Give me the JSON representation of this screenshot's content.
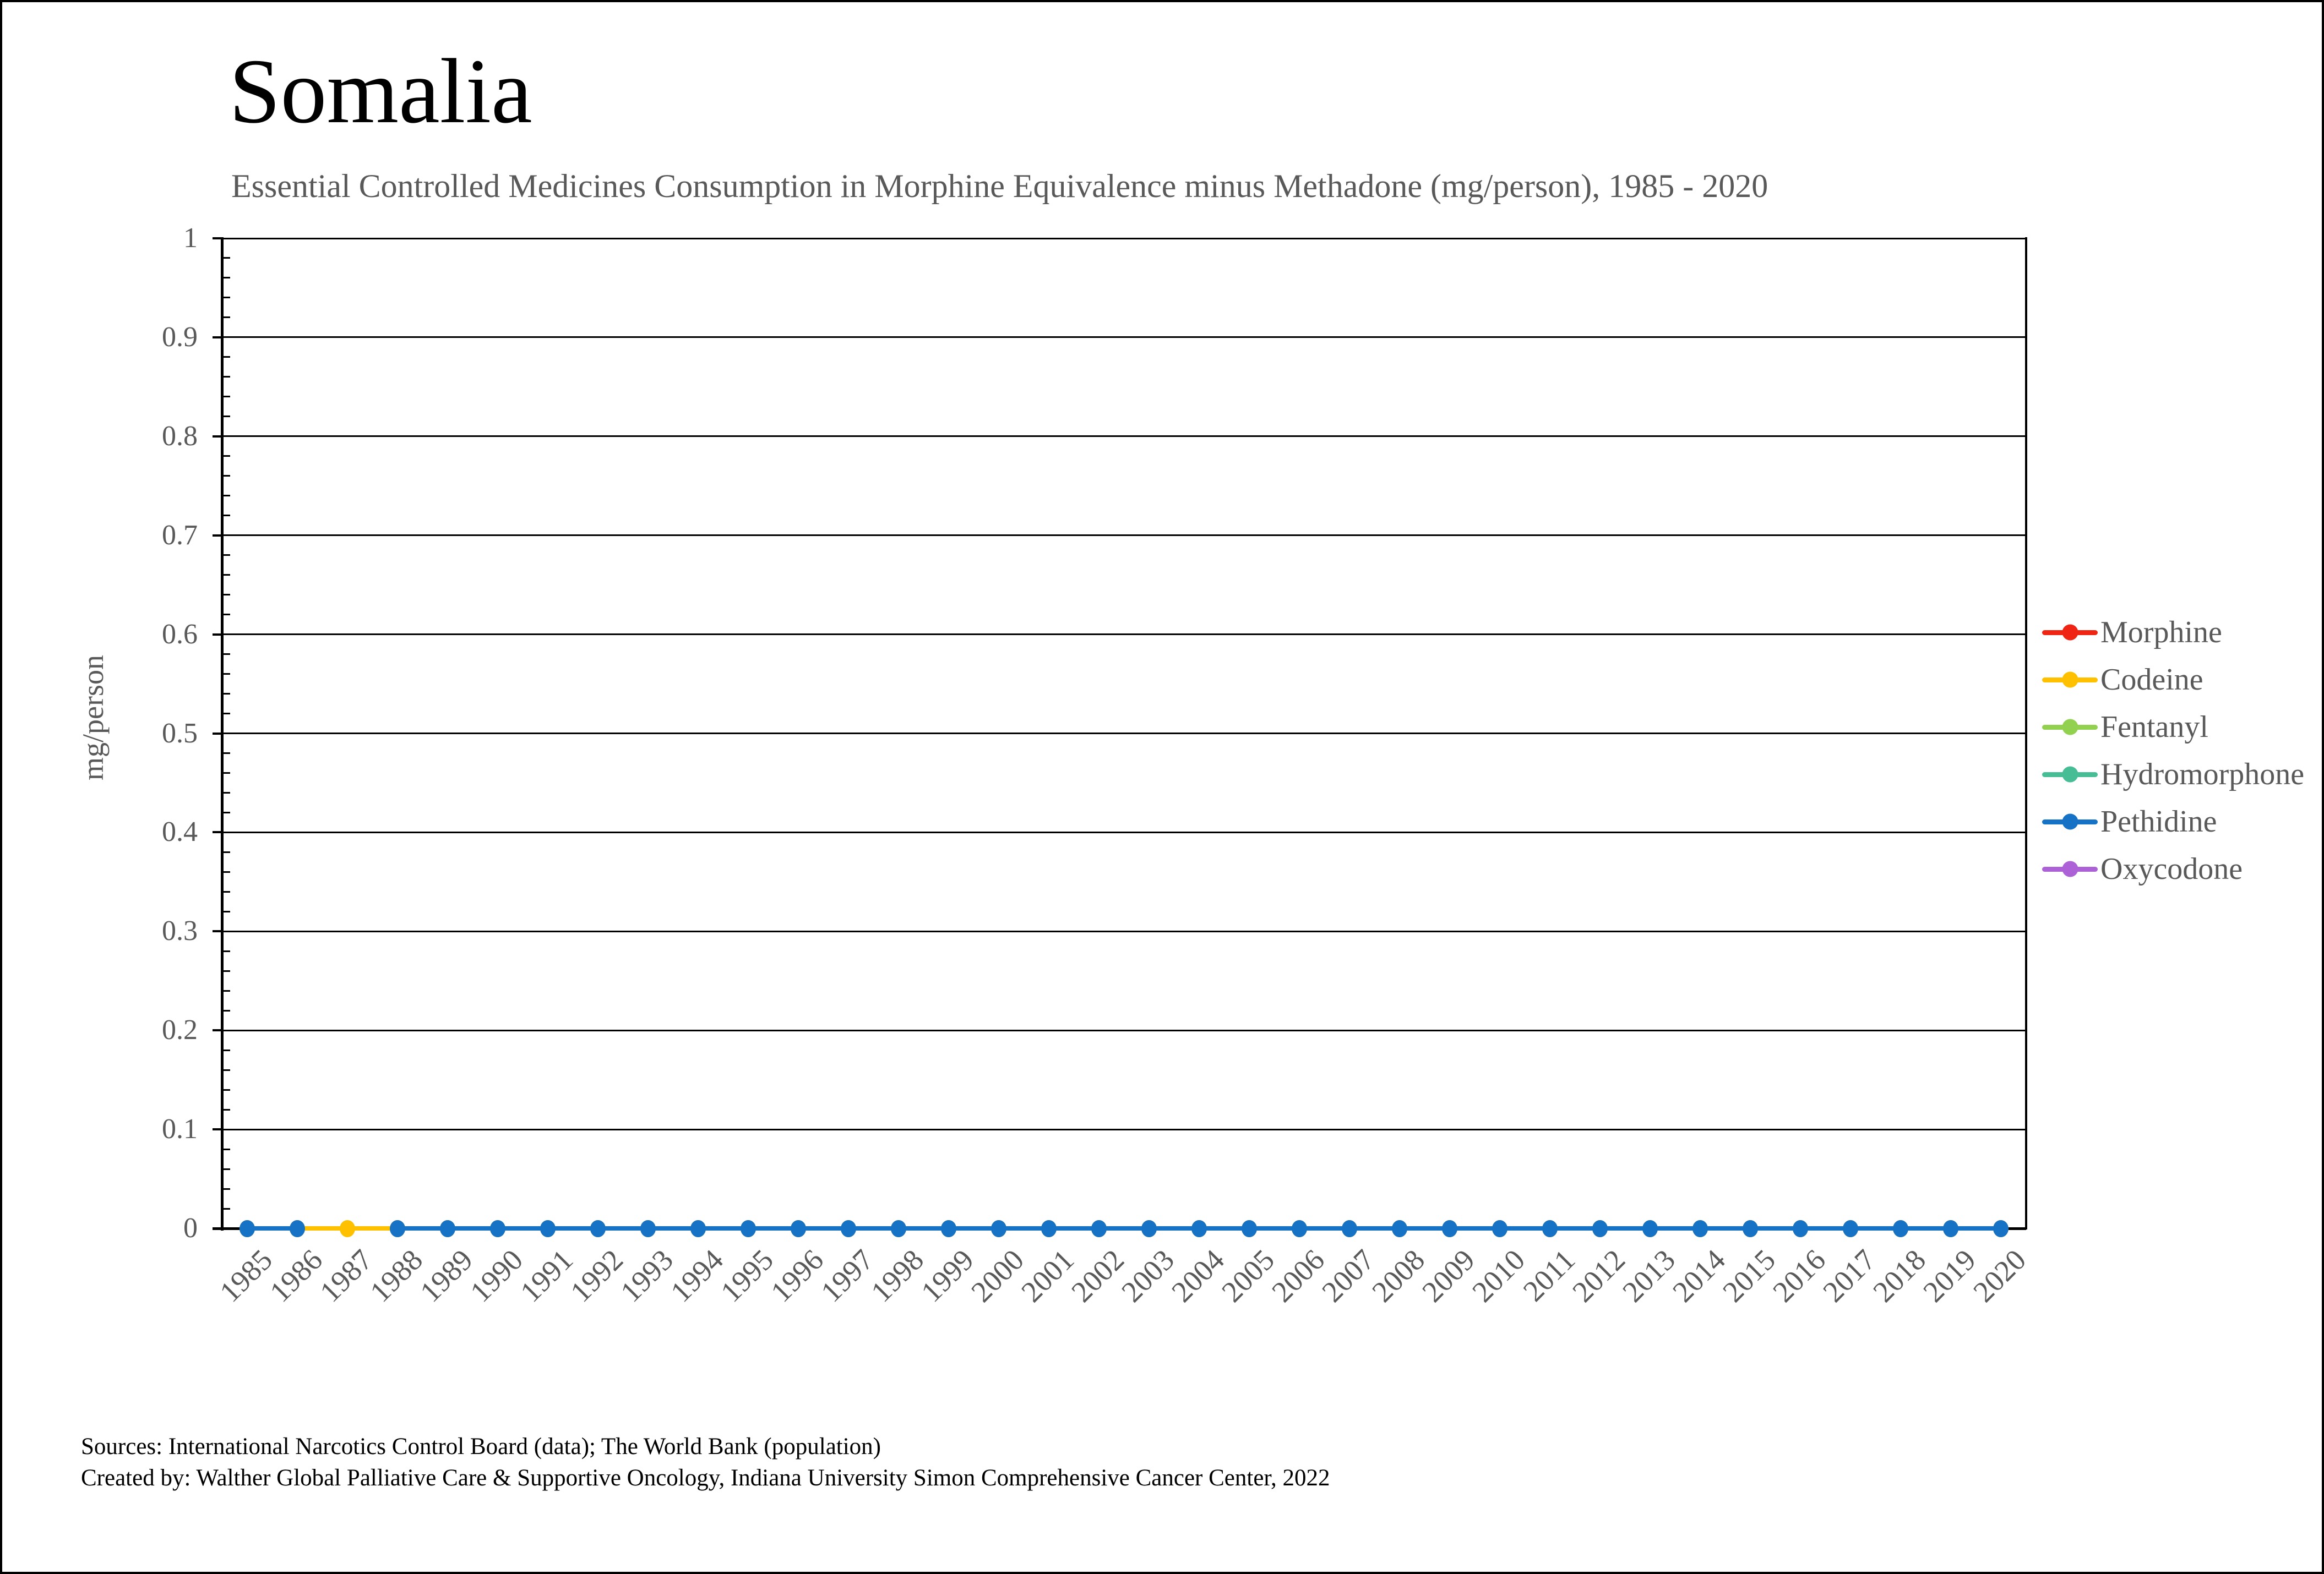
{
  "header": {
    "title": "Somalia",
    "subtitle": "Essential Controlled Medicines Consumption in Morphine Equivalence minus Methadone (mg/person), 1985 - 2020"
  },
  "footer": {
    "sources_line1": "Sources: International Narcotics Control Board (data); The World Bank (population)",
    "sources_line2": "Created by: Walther Global Palliative Care & Supportive Oncology, Indiana University Simon Comprehensive Cancer Center, 2022"
  },
  "colors": {
    "text_gray": "#595959",
    "axis_black": "#000000",
    "background": "#ffffff"
  },
  "chart_data": {
    "type": "line",
    "title": "Somalia",
    "subtitle": "Essential Controlled Medicines Consumption in Morphine Equivalence minus Methadone (mg/person), 1985 - 2020",
    "xlabel": "",
    "ylabel": "mg/person",
    "ylim": [
      0,
      1
    ],
    "ytick_step": 0.1,
    "yticks": [
      "1",
      "0.9",
      "0.8",
      "0.7",
      "0.6",
      "0.5",
      "0.4",
      "0.3",
      "0.2",
      "0.1",
      "0"
    ],
    "grid": "horizontal-major-on",
    "legend_position": "right",
    "categories": [
      "1985",
      "1986",
      "1987",
      "1988",
      "1989",
      "1990",
      "1991",
      "1992",
      "1993",
      "1994",
      "1995",
      "1996",
      "1997",
      "1998",
      "1999",
      "2000",
      "2001",
      "2002",
      "2003",
      "2004",
      "2005",
      "2006",
      "2007",
      "2008",
      "2009",
      "2010",
      "2011",
      "2012",
      "2013",
      "2014",
      "2015",
      "2016",
      "2017",
      "2018",
      "2019",
      "2020"
    ],
    "series": [
      {
        "name": "Morphine",
        "color": "#EF2412",
        "values": []
      },
      {
        "name": "Codeine",
        "color": "#FFC000",
        "values": [
          0,
          0,
          0,
          0,
          0,
          0,
          0,
          0,
          0,
          0,
          0,
          0,
          0,
          0,
          0,
          0,
          0,
          0,
          0,
          0,
          0,
          0,
          0,
          0,
          0,
          0,
          0,
          0,
          0,
          0,
          0,
          0,
          0,
          0,
          0,
          0
        ]
      },
      {
        "name": "Fentanyl",
        "color": "#92D050",
        "values": []
      },
      {
        "name": "Hydromorphone",
        "color": "#47BD96",
        "values": []
      },
      {
        "name": "Pethidine",
        "color": "#1572C5",
        "values": [
          0,
          0,
          null,
          0,
          0,
          0,
          0,
          0,
          0,
          0,
          0,
          0,
          0,
          0,
          0,
          0,
          0,
          0,
          0,
          0,
          0,
          0,
          0,
          0,
          0,
          0,
          0,
          0,
          0,
          0,
          0,
          0,
          0,
          0,
          0,
          0
        ]
      },
      {
        "name": "Oxycodone",
        "color": "#AC61D6",
        "values": []
      }
    ]
  }
}
